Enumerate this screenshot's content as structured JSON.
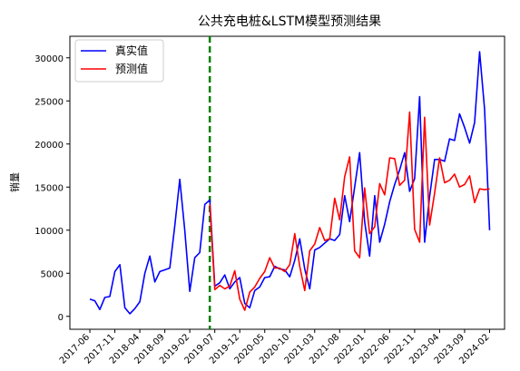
{
  "chart_data": {
    "type": "line",
    "title": "公共充电桩&LSTM模型预测结果",
    "xlabel": "",
    "ylabel": "销量",
    "xlim": [
      "2017-02",
      "2024-05"
    ],
    "ylim": [
      -1500,
      32500
    ],
    "yticks": [
      0,
      5000,
      10000,
      15000,
      20000,
      25000,
      30000
    ],
    "xticks": [
      "2017-06",
      "2017-11",
      "2018-04",
      "2018-09",
      "2019-02",
      "2019-07",
      "2019-12",
      "2020-05",
      "2020-10",
      "2021-03",
      "2021-08",
      "2022-01",
      "2022-06",
      "2022-11",
      "2023-04",
      "2023-09",
      "2024-02"
    ],
    "grid": false,
    "legend_position": "top-left",
    "split_line": {
      "x": "2019-06",
      "color": "#008000",
      "style": "dashed"
    },
    "series": [
      {
        "name": "真实值",
        "color": "#0000ff",
        "x": [
          "2017-06",
          "2017-07",
          "2017-08",
          "2017-09",
          "2017-10",
          "2017-11",
          "2017-12",
          "2018-01",
          "2018-02",
          "2018-03",
          "2018-04",
          "2018-05",
          "2018-06",
          "2018-07",
          "2018-08",
          "2018-09",
          "2018-10",
          "2018-11",
          "2018-12",
          "2019-01",
          "2019-02",
          "2019-03",
          "2019-04",
          "2019-05",
          "2019-06",
          "2019-07",
          "2019-08",
          "2019-09",
          "2019-10",
          "2019-11",
          "2019-12",
          "2020-01",
          "2020-02",
          "2020-03",
          "2020-04",
          "2020-05",
          "2020-06",
          "2020-07",
          "2020-08",
          "2020-09",
          "2020-10",
          "2020-11",
          "2020-12",
          "2021-01",
          "2021-02",
          "2021-03",
          "2021-04",
          "2021-05",
          "2021-06",
          "2021-07",
          "2021-08",
          "2021-09",
          "2021-10",
          "2021-11",
          "2021-12",
          "2022-01",
          "2022-02",
          "2022-03",
          "2022-04",
          "2022-05",
          "2022-06",
          "2022-07",
          "2022-08",
          "2022-09",
          "2022-10",
          "2022-11",
          "2022-12",
          "2023-01",
          "2023-02",
          "2023-03",
          "2023-04",
          "2023-05",
          "2023-06",
          "2023-07",
          "2023-08",
          "2023-09",
          "2023-10",
          "2023-11",
          "2023-12",
          "2024-01",
          "2024-02"
        ],
        "values": [
          2000,
          1800,
          800,
          2200,
          2300,
          5200,
          6000,
          1000,
          300,
          900,
          1700,
          5000,
          7000,
          4000,
          5200,
          5400,
          5600,
          10500,
          15900,
          10000,
          2900,
          6800,
          7400,
          13000,
          13500,
          3500,
          3900,
          4800,
          3200,
          4000,
          4500,
          1500,
          1000,
          3000,
          3400,
          4500,
          4600,
          5800,
          5500,
          5400,
          4600,
          6500,
          9000,
          5500,
          3200,
          7700,
          8000,
          8500,
          9000,
          8800,
          9500,
          14000,
          11000,
          15000,
          19000,
          11000,
          7000,
          14000,
          8600,
          10700,
          13300,
          15300,
          17000,
          19000,
          14500,
          16000,
          25500,
          8600,
          13900,
          18200,
          18200,
          18000,
          20600,
          20400,
          23500,
          21900,
          20100,
          22500,
          30700,
          24000,
          10000
        ]
      },
      {
        "name": "预测值",
        "color": "#ff0000",
        "x": [
          "2019-06",
          "2019-07",
          "2019-08",
          "2019-09",
          "2019-10",
          "2019-11",
          "2019-12",
          "2020-01",
          "2020-02",
          "2020-03",
          "2020-04",
          "2020-05",
          "2020-06",
          "2020-07",
          "2020-08",
          "2020-09",
          "2020-10",
          "2020-11",
          "2020-12",
          "2021-01",
          "2021-02",
          "2021-03",
          "2021-04",
          "2021-05",
          "2021-06",
          "2021-07",
          "2021-08",
          "2021-09",
          "2021-10",
          "2021-11",
          "2021-12",
          "2022-01",
          "2022-02",
          "2022-03",
          "2022-04",
          "2022-05",
          "2022-06",
          "2022-07",
          "2022-08",
          "2022-09",
          "2022-10",
          "2022-11",
          "2022-12",
          "2023-01",
          "2023-02",
          "2023-03",
          "2023-04",
          "2023-05",
          "2023-06",
          "2023-07",
          "2023-08",
          "2023-09",
          "2023-10",
          "2023-11",
          "2023-12",
          "2024-01",
          "2024-02"
        ],
        "values": [
          13000,
          3100,
          3600,
          3200,
          3500,
          5300,
          2000,
          700,
          2800,
          3400,
          4400,
          5200,
          6800,
          5600,
          5600,
          5200,
          6000,
          9600,
          5800,
          3000,
          7600,
          8400,
          10300,
          8800,
          9000,
          13700,
          11200,
          16200,
          18500,
          7600,
          6800,
          14900,
          9600,
          10400,
          15400,
          14100,
          18400,
          18300,
          15200,
          15800,
          23700,
          10100,
          8600,
          23100,
          10600,
          14300,
          18400,
          15500,
          15800,
          16500,
          15000,
          15300,
          16300,
          13200,
          14800,
          14700,
          14800
        ]
      }
    ]
  }
}
